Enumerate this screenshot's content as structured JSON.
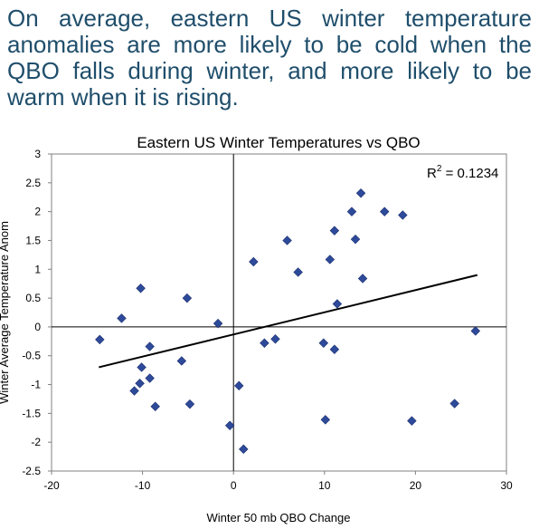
{
  "caption": "On average, eastern US winter temperature anomalies are more likely to be cold when the QBO falls during winter, and more likely to be warm when it is rising.",
  "chart_data": {
    "type": "scatter",
    "title": "Eastern US Winter Temperatures vs QBO",
    "xlabel": "Winter 50 mb QBO Change",
    "ylabel": "Winter Average Temperature Anom",
    "xlim": [
      -20,
      30
    ],
    "ylim": [
      -2.5,
      3
    ],
    "xticks": [
      -20,
      -10,
      0,
      10,
      20,
      30
    ],
    "yticks": [
      -2.5,
      -2,
      -1.5,
      -1,
      -0.5,
      0,
      0.5,
      1,
      1.5,
      2,
      2.5,
      3
    ],
    "marker_color": "#2e4a9a",
    "grid": false,
    "annotation": {
      "base": "R",
      "sup": "2",
      "rest": " = 0.1234"
    },
    "trendline": {
      "x": [
        -14.8,
        26.8
      ],
      "y": [
        -0.7,
        0.9
      ]
    },
    "points": [
      {
        "x": -14.7,
        "y": -0.22
      },
      {
        "x": -12.3,
        "y": 0.15
      },
      {
        "x": -10.9,
        "y": -1.11
      },
      {
        "x": -10.3,
        "y": -0.98
      },
      {
        "x": -10.1,
        "y": -0.7
      },
      {
        "x": -10.2,
        "y": 0.67
      },
      {
        "x": -9.2,
        "y": -0.34
      },
      {
        "x": -9.2,
        "y": -0.89
      },
      {
        "x": -8.6,
        "y": -1.38
      },
      {
        "x": -5.7,
        "y": -0.59
      },
      {
        "x": -5.1,
        "y": 0.5
      },
      {
        "x": -4.8,
        "y": -1.34
      },
      {
        "x": -1.7,
        "y": 0.06
      },
      {
        "x": -0.4,
        "y": -1.71
      },
      {
        "x": 0.6,
        "y": -1.02
      },
      {
        "x": 1.1,
        "y": -2.12
      },
      {
        "x": 2.2,
        "y": 1.13
      },
      {
        "x": 3.4,
        "y": -0.28
      },
      {
        "x": 4.6,
        "y": -0.21
      },
      {
        "x": 5.9,
        "y": 1.5
      },
      {
        "x": 7.1,
        "y": 0.95
      },
      {
        "x": 9.9,
        "y": -0.28
      },
      {
        "x": 10.1,
        "y": -1.61
      },
      {
        "x": 10.6,
        "y": 1.17
      },
      {
        "x": 11.1,
        "y": -0.39
      },
      {
        "x": 11.1,
        "y": 1.67
      },
      {
        "x": 11.4,
        "y": 0.4
      },
      {
        "x": 13.0,
        "y": 2.0
      },
      {
        "x": 13.4,
        "y": 1.52
      },
      {
        "x": 14.0,
        "y": 2.32
      },
      {
        "x": 14.2,
        "y": 0.84
      },
      {
        "x": 16.6,
        "y": 2.0
      },
      {
        "x": 18.6,
        "y": 1.94
      },
      {
        "x": 19.6,
        "y": -1.63
      },
      {
        "x": 24.3,
        "y": -1.33
      },
      {
        "x": 26.6,
        "y": -0.07
      }
    ]
  }
}
